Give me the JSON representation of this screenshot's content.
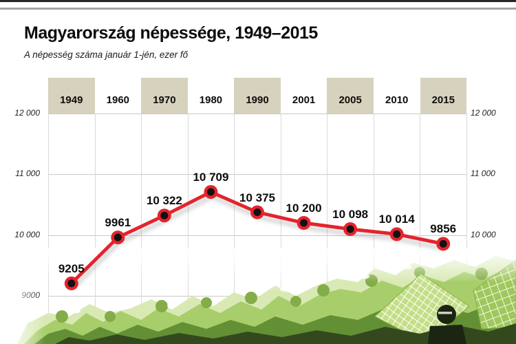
{
  "header": {
    "title": "Magyarország népessége, 1949–2015",
    "subtitle": "A népesség száma január 1-jén, ezer fő"
  },
  "chart_data": {
    "type": "line",
    "title": "Magyarország népessége, 1949–2015",
    "subtitle": "A népesség száma január 1-jén, ezer fő",
    "unit": "ezer fő",
    "categories": [
      "1949",
      "1960",
      "1970",
      "1980",
      "1990",
      "2001",
      "2005",
      "2010",
      "2015"
    ],
    "values": [
      9205,
      9961,
      10322,
      10709,
      10375,
      10200,
      10098,
      10014,
      9856
    ],
    "point_labels": [
      "9205",
      "9961",
      "10 322",
      "10 709",
      "10 375",
      "10 200",
      "10 098",
      "10 014",
      "9856"
    ],
    "y_axis": {
      "values": [
        12000,
        11000,
        10000,
        9000
      ],
      "left_labels": [
        "12 000",
        "11 000",
        "10 000",
        "9000"
      ],
      "right_labels": [
        "12 000",
        "11 000",
        "10 000"
      ]
    },
    "ylim": [
      9000,
      12000
    ],
    "grid": true,
    "legend": false,
    "colors": {
      "line": "#e3242d",
      "dot": "#121212",
      "header_box": "#d7d2bd",
      "grid_line": "#c9c9c9",
      "text": "#111111"
    }
  }
}
